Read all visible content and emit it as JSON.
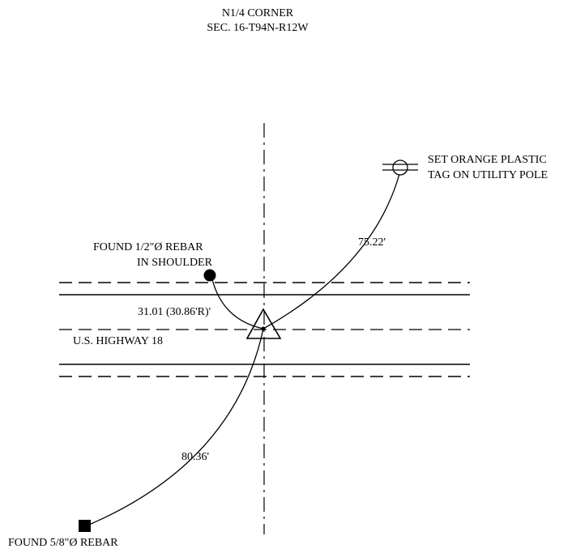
{
  "title": {
    "line1": "N1/4 CORNER",
    "line2": "SEC. 16-T94N-R12W"
  },
  "labels": {
    "rebar_top_line1": "FOUND 1/2\"Ø REBAR",
    "rebar_top_line2": "IN SHOULDER",
    "pole_line1": "SET ORANGE PLASTIC",
    "pole_line2": "TAG ON UTILITY POLE",
    "highway": "U.S. HIGHWAY 18",
    "rebar_bottom": "FOUND 5/8\"Ø REBAR"
  },
  "distances": {
    "to_pole": "75.22'",
    "to_rebar_top": "31.01 (30.86'R)'",
    "to_rebar_bottom": "80.36'"
  },
  "colors": {
    "ink": "#000000",
    "background": "#ffffff"
  },
  "symbols": {
    "corner": "triangle-marker",
    "rebar_top": "filled-circle",
    "rebar_bottom": "filled-square",
    "pole": "circle-with-crossbars"
  }
}
